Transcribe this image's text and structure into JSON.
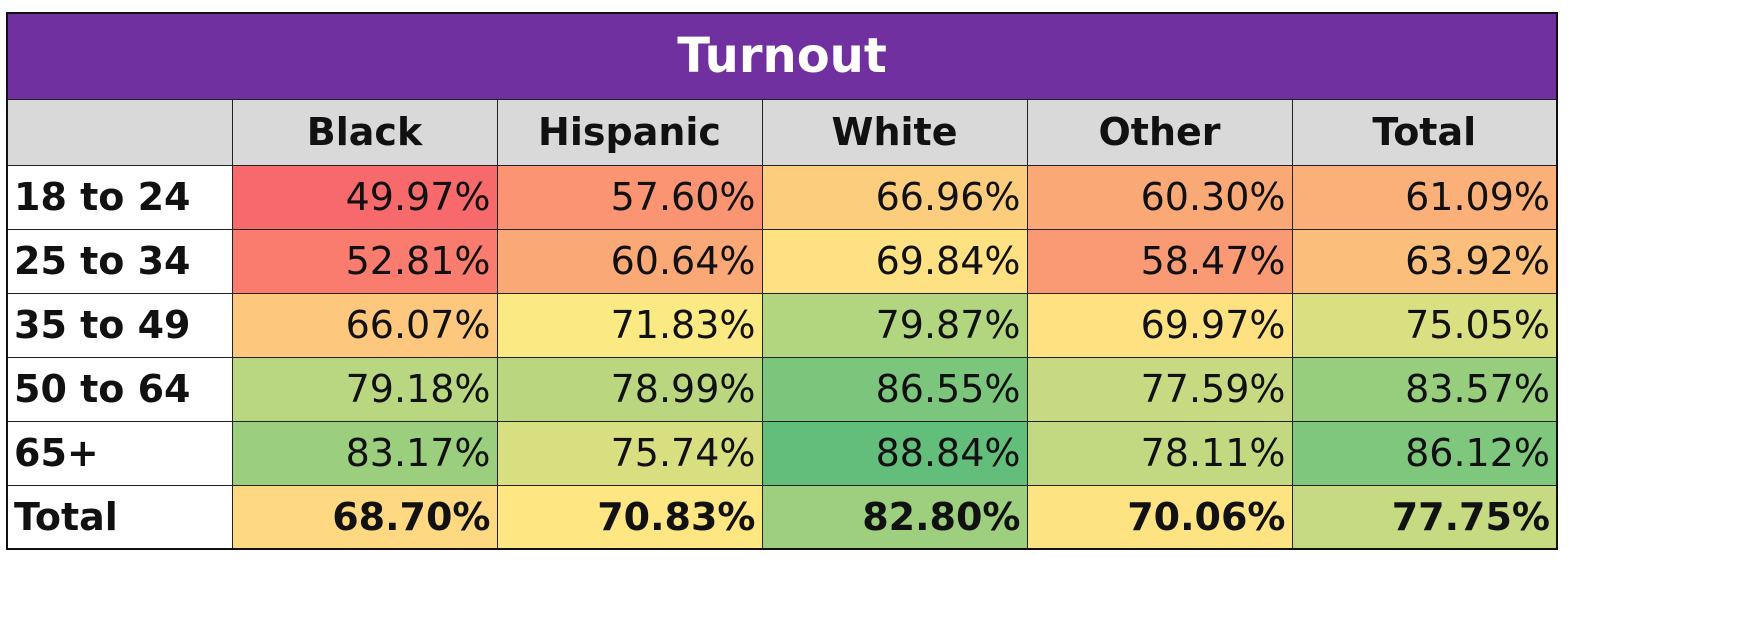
{
  "chart_data": {
    "type": "heatmap",
    "title": "Turnout",
    "columns": [
      "",
      "Black",
      "Hispanic",
      "White",
      "Other",
      "Total"
    ],
    "rows": [
      {
        "label": "18 to 24",
        "values": [
          "49.97%",
          "57.60%",
          "66.96%",
          "60.30%",
          "61.09%"
        ],
        "colors": [
          "#f8696b",
          "#fa9473",
          "#fdcd7e",
          "#fba877",
          "#fcb079"
        ]
      },
      {
        "label": "25 to 34",
        "values": [
          "52.81%",
          "60.64%",
          "69.84%",
          "58.47%",
          "63.92%"
        ],
        "colors": [
          "#f97c6e",
          "#fba877",
          "#fee182",
          "#fa9a74",
          "#fcbf7b"
        ]
      },
      {
        "label": "35 to 49",
        "values": [
          "66.07%",
          "71.83%",
          "79.87%",
          "69.97%",
          "75.05%"
        ],
        "colors": [
          "#fdc87d",
          "#fbe983",
          "#b2d680",
          "#fee282",
          "#d8e082"
        ]
      },
      {
        "label": "50 to 64",
        "values": [
          "79.18%",
          "78.99%",
          "86.55%",
          "77.59%",
          "83.57%"
        ],
        "colors": [
          "#b8d780",
          "#bad780",
          "#7bc67c",
          "#c7da81",
          "#97ce7e"
        ]
      },
      {
        "label": "65+",
        "values": [
          "83.17%",
          "75.74%",
          "88.84%",
          "78.11%",
          "86.12%"
        ],
        "colors": [
          "#9bcf7e",
          "#d8df81",
          "#63be7b",
          "#c2d981",
          "#7fc77d"
        ]
      },
      {
        "label": "Total",
        "values": [
          "68.70%",
          "70.83%",
          "82.80%",
          "70.06%",
          "77.75%"
        ],
        "colors": [
          "#fed981",
          "#fee683",
          "#9dcf7f",
          "#fee382",
          "#c5da81"
        ],
        "bold": true
      }
    ]
  }
}
